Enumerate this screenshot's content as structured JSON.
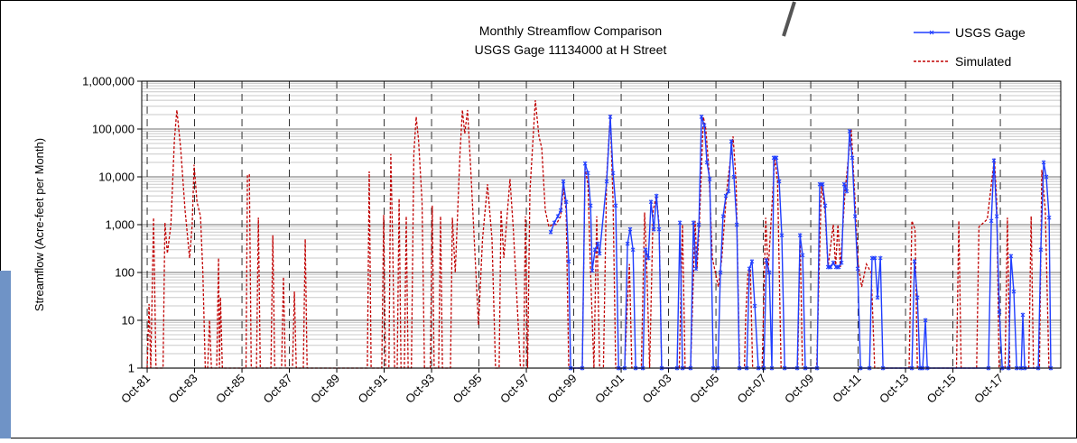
{
  "chart_data": {
    "type": "line",
    "title": "Monthly Streamflow Comparison",
    "subtitle": "USGS Gage 11134000 at H Street",
    "y_label": "Streamflow (Acre-feet per Month)",
    "log_y": true,
    "grid": true,
    "minor_grid": true,
    "legend": "top-right",
    "ylim": [
      1,
      1000000
    ],
    "yticks": [
      1,
      10,
      100,
      {
        "value": 1000,
        "label": "1,000"
      },
      {
        "value": 10000,
        "label": "10,000"
      },
      {
        "value": 100000,
        "label": "100,000"
      },
      {
        "value": 1000000,
        "label": "1,000,000"
      }
    ],
    "xlim": [
      1981.52,
      2020.3
    ],
    "xticks": [
      {
        "value": 1981.75,
        "label": "Oct-81"
      },
      {
        "value": 1983.75,
        "label": "Oct-83"
      },
      {
        "value": 1985.75,
        "label": "Oct-85"
      },
      {
        "value": 1987.75,
        "label": "Oct-87"
      },
      {
        "value": 1989.75,
        "label": "Oct-89"
      },
      {
        "value": 1991.75,
        "label": "Oct-91"
      },
      {
        "value": 1993.75,
        "label": "Oct-93"
      },
      {
        "value": 1995.75,
        "label": "Oct-95"
      },
      {
        "value": 1997.75,
        "label": "Oct-97"
      },
      {
        "value": 1999.75,
        "label": "Oct-99"
      },
      {
        "value": 2001.75,
        "label": "Oct-01"
      },
      {
        "value": 2003.75,
        "label": "Oct-03"
      },
      {
        "value": 2005.75,
        "label": "Oct-05"
      },
      {
        "value": 2007.75,
        "label": "Oct-07"
      },
      {
        "value": 2009.75,
        "label": "Oct-09"
      },
      {
        "value": 2011.75,
        "label": "Oct-11"
      },
      {
        "value": 2013.75,
        "label": "Oct-13"
      },
      {
        "value": 2015.75,
        "label": "Oct-15"
      },
      {
        "value": 2017.75,
        "label": "Oct-17"
      }
    ],
    "series": [
      {
        "name": "USGS Gage",
        "color": "#1f3dff",
        "dashed": false,
        "markers": true,
        "x": [
          1998.78,
          1998.93,
          1999.08,
          1999.2,
          1999.31,
          1999.43,
          1999.54,
          1999.62,
          2000.11,
          2000.23,
          2000.35,
          2000.46,
          2000.53,
          2000.65,
          2000.76,
          2000.84,
          2001.14,
          2001.29,
          2001.41,
          2001.52,
          2001.64,
          2001.9,
          2002.02,
          2002.13,
          2002.25,
          2002.36,
          2002.67,
          2002.78,
          2002.9,
          2003.01,
          2003.13,
          2003.24,
          2003.35,
          2003.46,
          2004.11,
          2004.23,
          2004.34,
          2004.68,
          2004.8,
          2004.91,
          2005.03,
          2005.14,
          2005.26,
          2005.37,
          2005.49,
          2005.64,
          2005.83,
          2005.94,
          2006.05,
          2006.17,
          2006.28,
          2006.4,
          2006.51,
          2006.63,
          2006.74,
          2007.05,
          2007.16,
          2007.27,
          2007.39,
          2007.54,
          2007.77,
          2007.88,
          2008.0,
          2008.11,
          2008.19,
          2008.3,
          2008.42,
          2008.53,
          2008.65,
          2009.18,
          2009.3,
          2009.41,
          2009.52,
          2010.02,
          2010.13,
          2010.25,
          2010.36,
          2010.48,
          2010.59,
          2010.7,
          2010.82,
          2010.93,
          2011.05,
          2011.16,
          2011.27,
          2011.39,
          2011.5,
          2011.62,
          2011.73,
          2011.85,
          2012.23,
          2012.34,
          2012.46,
          2012.57,
          2012.69,
          2012.8,
          2014.02,
          2014.13,
          2014.25,
          2014.36,
          2014.47,
          2014.59,
          2014.67,
          2017.25,
          2017.37,
          2017.48,
          2017.6,
          2017.71,
          2017.83,
          2018.1,
          2018.2,
          2018.32,
          2018.44,
          2018.63,
          2018.7,
          2018.78,
          2019.35,
          2019.46,
          2019.58,
          2019.69,
          2019.81,
          2019.88
        ],
        "values": [
          700,
          1100,
          1500,
          2000,
          8000,
          3000,
          170,
          1,
          1,
          19000,
          12000,
          2500,
          110,
          300,
          400,
          250,
          8000,
          180000,
          12000,
          2500,
          1,
          1,
          400,
          800,
          300,
          1,
          1,
          300,
          200,
          3000,
          800,
          4000,
          800,
          1,
          1,
          1100,
          1,
          1,
          1100,
          120,
          1000,
          180000,
          120000,
          20000,
          9000,
          1,
          1,
          100,
          1500,
          4000,
          5000,
          55000,
          10000,
          1000,
          1,
          1,
          120,
          170,
          20,
          1,
          1,
          180,
          100,
          1,
          25000,
          25000,
          8000,
          600,
          1,
          1,
          600,
          230,
          1,
          1,
          7000,
          7000,
          2500,
          130,
          130,
          160,
          130,
          130,
          160,
          7000,
          5000,
          90000,
          25000,
          1500,
          120,
          1,
          1,
          200,
          200,
          30,
          200,
          1,
          1,
          170,
          30,
          1,
          1,
          10,
          1,
          1,
          1200,
          22000,
          1500,
          15,
          1,
          1,
          220,
          40,
          1,
          1,
          13,
          1,
          1,
          300,
          20000,
          10000,
          1400,
          1
        ]
      },
      {
        "name": "Simulated",
        "color": "#c00000",
        "dashed": true,
        "markers": false,
        "x": [
          1981.75,
          1981.83,
          1981.9,
          1982.02,
          1982.12,
          1982.42,
          1982.5,
          1982.6,
          1982.75,
          1982.9,
          1983.0,
          1983.16,
          1983.35,
          1983.54,
          1983.65,
          1983.73,
          1983.85,
          1984.0,
          1984.1,
          1984.2,
          1984.3,
          1984.38,
          1984.46,
          1984.68,
          1984.76,
          1984.8,
          1984.84,
          1984.92,
          1985.92,
          1985.98,
          1986.06,
          1986.14,
          1986.36,
          1986.44,
          1986.52,
          1986.97,
          1987.05,
          1987.13,
          1987.42,
          1987.5,
          1987.58,
          1987.88,
          1987.96,
          1988.04,
          1988.34,
          1988.42,
          1988.5,
          1991.04,
          1991.12,
          1991.2,
          1991.65,
          1991.73,
          1991.81,
          1991.95,
          1992.03,
          1992.11,
          1992.19,
          1992.3,
          1992.38,
          1992.46,
          1992.6,
          1992.68,
          1992.76,
          1992.9,
          1993.0,
          1993.1,
          1993.2,
          1993.35,
          1993.45,
          1993.7,
          1993.78,
          1993.86,
          1994.05,
          1994.13,
          1994.21,
          1994.55,
          1994.63,
          1994.75,
          1994.95,
          1995.05,
          1995.15,
          1995.27,
          1995.4,
          1995.55,
          1995.73,
          1995.9,
          1996.11,
          1996.3,
          1996.45,
          1996.6,
          1996.68,
          1996.8,
          1997.06,
          1997.2,
          1997.35,
          1997.5,
          1997.63,
          1997.71,
          1997.8,
          1997.9,
          1998.13,
          1998.28,
          1998.4,
          1998.55,
          1998.7,
          1998.85,
          1999.0,
          1999.2,
          1999.31,
          1999.43,
          1999.54,
          2000.11,
          2000.23,
          2000.35,
          2000.46,
          2000.6,
          2000.72,
          2000.84,
          2001.0,
          2001.14,
          2001.29,
          2001.41,
          2001.52,
          2001.9,
          2002.0,
          2002.1,
          2002.2,
          2002.6,
          2002.74,
          2002.82,
          2002.95,
          2003.1,
          2003.24,
          2003.35,
          2003.46,
          2004.2,
          2004.34,
          2004.45,
          2004.68,
          2004.87,
          2004.95,
          2005.05,
          2005.22,
          2005.32,
          2005.45,
          2005.6,
          2005.85,
          2006.0,
          2006.2,
          2006.47,
          2006.6,
          2006.75,
          2006.95,
          2007.0,
          2007.1,
          2007.2,
          2007.3,
          2007.7,
          2007.85,
          2007.95,
          2008.23,
          2008.35,
          2008.5,
          2009.2,
          2009.3,
          2009.4,
          2010.0,
          2010.2,
          2010.35,
          2010.48,
          2010.7,
          2010.8,
          2010.9,
          2011.0,
          2011.2,
          2011.46,
          2011.6,
          2011.75,
          2011.9,
          2012.1,
          2012.3,
          2012.45,
          2013.9,
          2014.02,
          2014.15,
          2014.25,
          2015.9,
          2016.0,
          2016.1,
          2016.75,
          2016.85,
          2016.95,
          2017.2,
          2017.5,
          2017.6,
          2017.7,
          2017.95,
          2018.05,
          2018.15,
          2018.95,
          2019.05,
          2019.15,
          2019.4,
          2019.5,
          2019.65,
          2019.8
        ],
        "values": [
          1,
          22,
          1,
          1400,
          1,
          1,
          1100,
          250,
          1000,
          60000,
          250000,
          40000,
          2000,
          200,
          1000,
          18000,
          3000,
          1500,
          100,
          1,
          1,
          10,
          1,
          1,
          200,
          1,
          30,
          1,
          1,
          11000,
          11000,
          1,
          1,
          1400,
          1,
          1,
          600,
          1,
          1,
          80,
          1,
          1,
          40,
          1,
          1,
          500,
          1,
          1,
          13000,
          1,
          1,
          1600,
          1,
          1,
          30000,
          400,
          1,
          1,
          3500,
          1,
          1,
          1500,
          1,
          1,
          30000,
          180000,
          60000,
          3000,
          1,
          1,
          2500,
          1,
          1,
          1500,
          1,
          1,
          1400,
          100,
          30000,
          250000,
          80000,
          250000,
          15000,
          500,
          8,
          500,
          7000,
          500,
          1,
          1,
          2000,
          200,
          9000,
          800,
          30,
          1,
          1,
          1500,
          1,
          5000,
          400000,
          70000,
          40000,
          2000,
          900,
          1000,
          1000,
          1500,
          6000,
          2000,
          1,
          1,
          15000,
          7000,
          100,
          1,
          1500,
          1,
          1,
          10000,
          200000,
          3000,
          1,
          1,
          15,
          150,
          1,
          1,
          1800,
          200,
          1,
          2000,
          4000,
          1000,
          1,
          1,
          1000,
          1,
          1,
          1200,
          120,
          1000,
          180000,
          100000,
          15000,
          200,
          50,
          200,
          5000,
          70000,
          8000,
          1,
          1,
          10,
          100,
          120,
          1,
          1,
          1400,
          100,
          25000,
          8000,
          1,
          1,
          600,
          1,
          1,
          7000,
          2000,
          130,
          1000,
          130,
          1000,
          130,
          5000,
          100000,
          5000,
          150,
          50,
          150,
          100,
          1,
          1,
          1200,
          800,
          1,
          1,
          1200,
          1,
          1,
          900,
          1000,
          1300,
          24000,
          3000,
          1,
          1,
          1400,
          1,
          1,
          1500,
          1,
          1,
          14000,
          2000,
          1
        ]
      }
    ]
  }
}
